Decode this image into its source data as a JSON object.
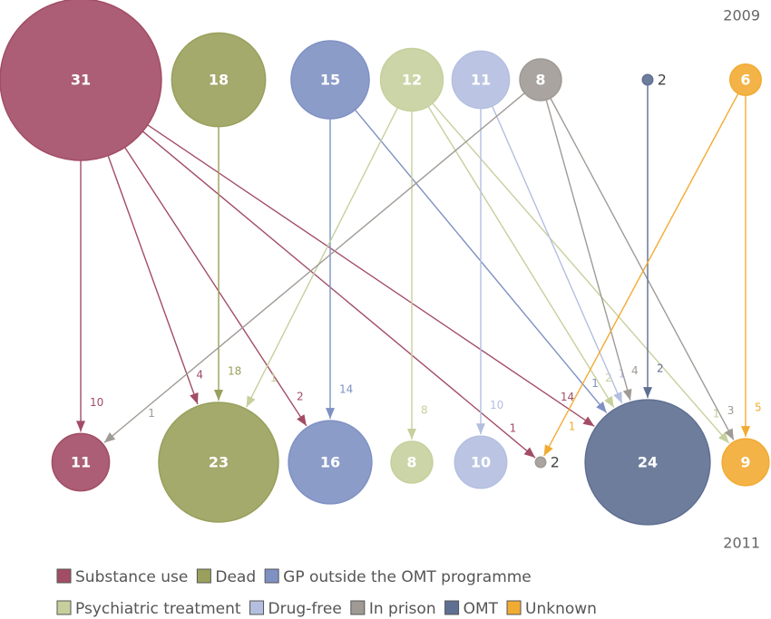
{
  "chart_data": {
    "type": "flow",
    "x": [
      "2009",
      "2011"
    ],
    "series": [
      {
        "name": "Substance use",
        "color": "#a24d66",
        "values": [
          31,
          11
        ],
        "flows": [
          10,
          4,
          2,
          null,
          null,
          1,
          14,
          null
        ]
      },
      {
        "name": "Dead",
        "color": "#9aa05c",
        "values": [
          18,
          23
        ],
        "flows": [
          null,
          18,
          null,
          null,
          null,
          null,
          null,
          null
        ]
      },
      {
        "name": "GP outside the OMT programme",
        "color": "#7f91c3",
        "values": [
          15,
          16
        ],
        "flows": [
          null,
          null,
          14,
          null,
          null,
          null,
          1,
          null
        ]
      },
      {
        "name": "Psychiatric treatment",
        "color": "#c6d09d",
        "values": [
          12,
          8
        ],
        "flows": [
          null,
          1,
          null,
          8,
          null,
          null,
          2,
          1
        ]
      },
      {
        "name": "Drug-free",
        "color": "#b4bfe0",
        "values": [
          11,
          10
        ],
        "flows": [
          null,
          null,
          null,
          null,
          10,
          null,
          1,
          null
        ]
      },
      {
        "name": "In prison",
        "color": "#a09a95",
        "values": [
          8,
          2
        ],
        "flows": [
          1,
          null,
          null,
          null,
          null,
          null,
          4,
          3
        ]
      },
      {
        "name": "OMT",
        "color": "#5f6f92",
        "values": [
          2,
          24
        ],
        "flows": [
          null,
          null,
          null,
          null,
          null,
          null,
          2,
          null
        ]
      },
      {
        "name": "Unknown",
        "color": "#f2ab32",
        "values": [
          6,
          9
        ],
        "flows": [
          null,
          null,
          null,
          null,
          null,
          1,
          null,
          5
        ]
      }
    ]
  }
}
